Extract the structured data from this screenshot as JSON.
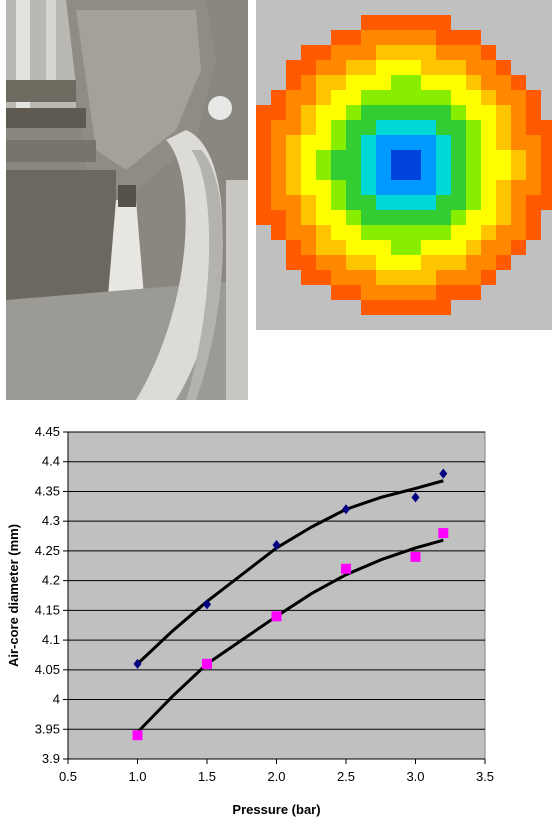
{
  "photo": {
    "subject": "process-equipment-photo"
  },
  "heatmap": {
    "colors": [
      "#0044dd",
      "#0099ff",
      "#00d8d8",
      "#33cc33",
      "#88ee00",
      "#ffff00",
      "#ffc400",
      "#ff8800",
      "#ff5a00"
    ],
    "background": "#c0c0c0"
  },
  "chart_data": {
    "type": "scatter",
    "title": "",
    "xlabel": "Pressure (bar)",
    "ylabel": "Air-core diameter (mm)",
    "xlim": [
      0.5,
      3.5
    ],
    "ylim": [
      3.9,
      4.45
    ],
    "x_ticks": [
      "0.5",
      "1.0",
      "1.5",
      "2.0",
      "2.5",
      "3.0",
      "3.5"
    ],
    "y_ticks": [
      "3.9",
      "3.95",
      "4",
      "4.05",
      "4.1",
      "4.15",
      "4.2",
      "4.25",
      "4.3",
      "4.35",
      "4.4",
      "4.45"
    ],
    "grid": true,
    "plot_background": "#c0c0c0",
    "series": [
      {
        "marker": "diamond",
        "color": "#000080",
        "x": [
          1.0,
          1.5,
          2.0,
          2.5,
          3.0,
          3.2
        ],
        "y": [
          4.06,
          4.16,
          4.26,
          4.32,
          4.34,
          4.38
        ]
      },
      {
        "marker": "square",
        "color": "#ff00ff",
        "x": [
          1.0,
          1.5,
          2.0,
          2.5,
          3.0,
          3.2
        ],
        "y": [
          3.94,
          4.06,
          4.14,
          4.22,
          4.24,
          4.28
        ]
      }
    ],
    "trendlines": [
      {
        "color": "#000000",
        "x": [
          1.0,
          1.25,
          1.5,
          1.75,
          2.0,
          2.25,
          2.5,
          2.75,
          3.0,
          3.2
        ],
        "y": [
          4.06,
          4.115,
          4.165,
          4.21,
          4.255,
          4.29,
          4.32,
          4.34,
          4.355,
          4.368
        ]
      },
      {
        "color": "#000000",
        "x": [
          1.0,
          1.25,
          1.5,
          1.75,
          2.0,
          2.25,
          2.5,
          2.75,
          3.0,
          3.2
        ],
        "y": [
          3.945,
          4.005,
          4.06,
          4.1,
          4.14,
          4.178,
          4.21,
          4.235,
          4.255,
          4.268
        ]
      }
    ]
  }
}
